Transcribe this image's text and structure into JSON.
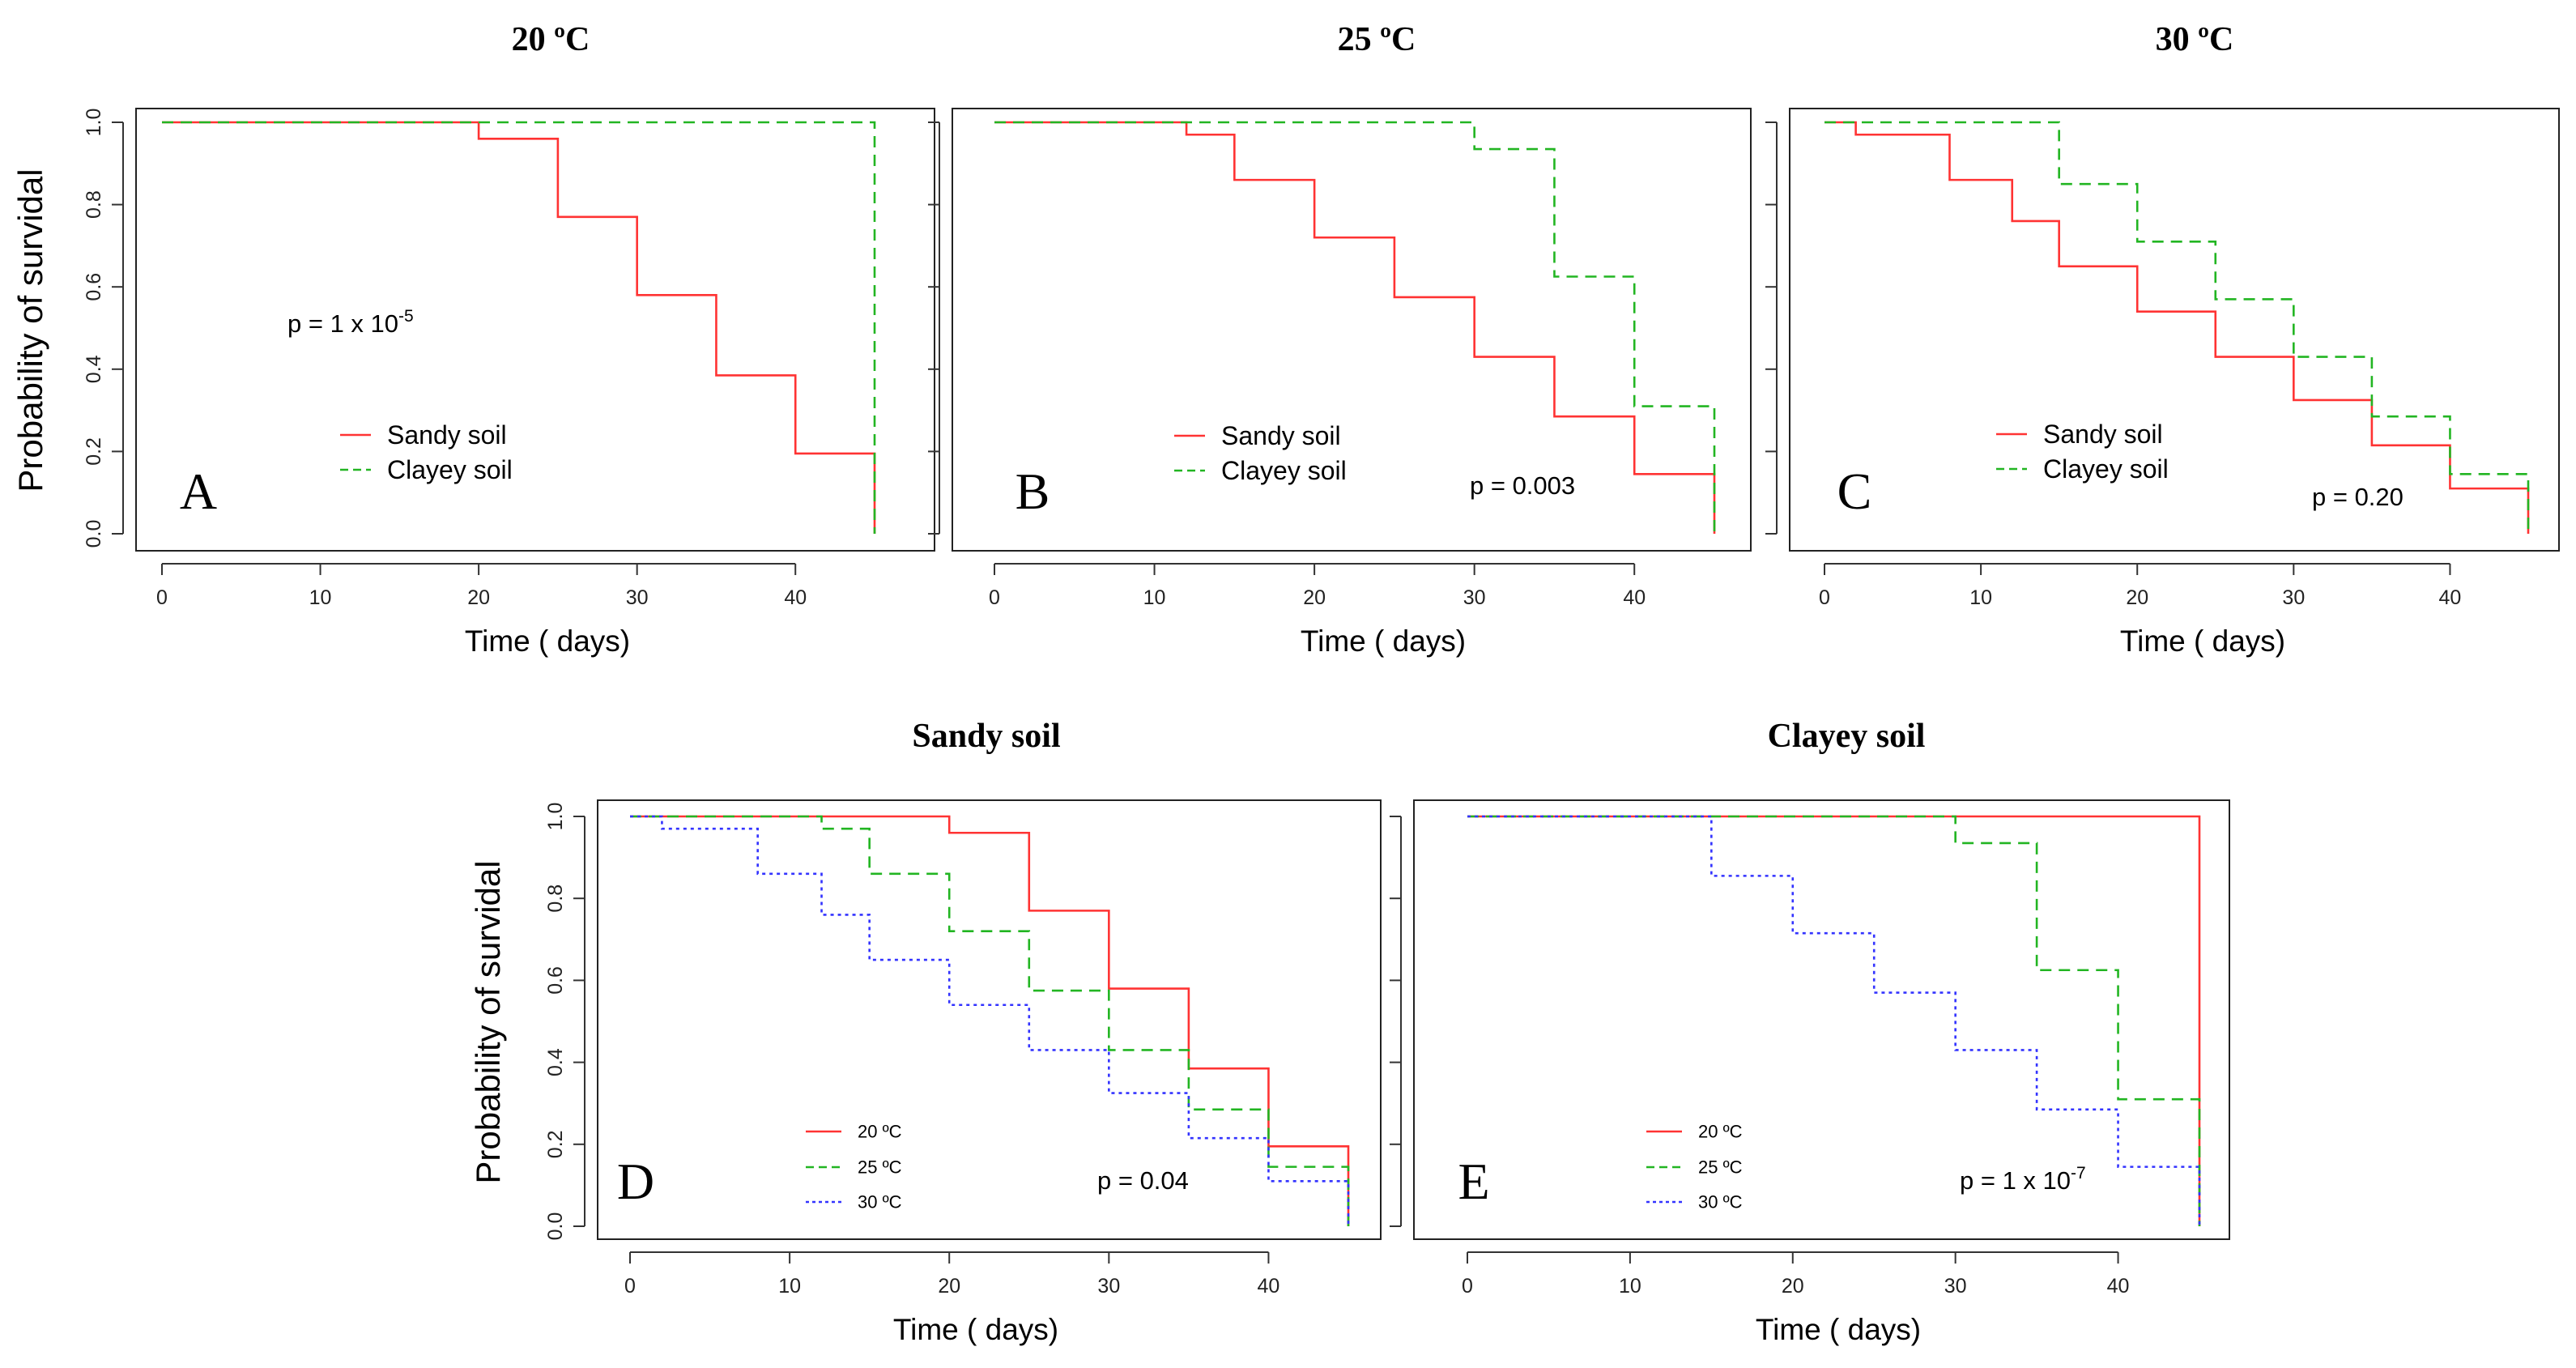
{
  "chart_data": [
    {
      "type": "line",
      "step": true,
      "panel_letter": "A",
      "title": "20 ºC",
      "xlabel": "Time ( days)",
      "ylabel": "Probability of survidal",
      "xlim": [
        0,
        45
      ],
      "ylim": [
        0,
        1
      ],
      "xticks": [
        "0",
        "10",
        "20",
        "30",
        "40"
      ],
      "yticks": [
        "0.0",
        "0.2",
        "0.4",
        "0.6",
        "0.8",
        "1.0"
      ],
      "p_value": {
        "prefix": "p = 1 x 10",
        "exponent": "-5"
      },
      "series": [
        {
          "name": "Sandy soil",
          "color": "#ff3333",
          "dash": "solid",
          "x": [
            0,
            20,
            25,
            30,
            35,
            40,
            45
          ],
          "y": [
            1.0,
            0.96,
            0.77,
            0.58,
            0.385,
            0.195,
            0.0
          ]
        },
        {
          "name": "Clayey soil",
          "color": "#22b522",
          "dash": "dashed",
          "x": [
            0,
            45
          ],
          "y": [
            1.0,
            0.0
          ]
        }
      ]
    },
    {
      "type": "line",
      "step": true,
      "panel_letter": "B",
      "title": "25 ºC",
      "xlabel": "Time ( days)",
      "ylabel": "",
      "xlim": [
        0,
        45
      ],
      "ylim": [
        0,
        1
      ],
      "xticks": [
        "0",
        "10",
        "20",
        "30",
        "40"
      ],
      "yticks": [],
      "p_value": {
        "prefix": "p = 0.003",
        "exponent": ""
      },
      "series": [
        {
          "name": "Sandy soil",
          "color": "#ff3333",
          "dash": "solid",
          "x": [
            0,
            12,
            15,
            20,
            25,
            30,
            35,
            40,
            45
          ],
          "y": [
            1.0,
            0.97,
            0.86,
            0.72,
            0.575,
            0.43,
            0.285,
            0.145,
            0.0
          ]
        },
        {
          "name": "Clayey soil",
          "color": "#22b522",
          "dash": "dashed",
          "x": [
            0,
            30,
            35,
            40,
            45
          ],
          "y": [
            1.0,
            0.935,
            0.625,
            0.31,
            0.0
          ]
        }
      ]
    },
    {
      "type": "line",
      "step": true,
      "panel_letter": "C",
      "title": "30 ºC",
      "xlabel": "Time ( days)",
      "ylabel": "",
      "xlim": [
        0,
        45
      ],
      "ylim": [
        0,
        1
      ],
      "xticks": [
        "0",
        "10",
        "20",
        "30",
        "40"
      ],
      "yticks": [],
      "p_value": {
        "prefix": "p = 0.20",
        "exponent": ""
      },
      "series": [
        {
          "name": "Sandy soil",
          "color": "#ff3333",
          "dash": "solid",
          "x": [
            0,
            2,
            8,
            12,
            15,
            20,
            25,
            30,
            35,
            40,
            45
          ],
          "y": [
            1.0,
            0.97,
            0.86,
            0.76,
            0.65,
            0.54,
            0.43,
            0.325,
            0.215,
            0.11,
            0.0
          ]
        },
        {
          "name": "Clayey soil",
          "color": "#22b522",
          "dash": "dashed",
          "x": [
            0,
            15,
            20,
            25,
            30,
            35,
            40,
            45
          ],
          "y": [
            1.0,
            0.85,
            0.71,
            0.57,
            0.43,
            0.285,
            0.145,
            0.0
          ]
        }
      ]
    },
    {
      "type": "line",
      "step": true,
      "panel_letter": "D",
      "title": "Sandy soil",
      "xlabel": "Time ( days)",
      "ylabel": "Probability of survidal",
      "xlim": [
        0,
        45
      ],
      "ylim": [
        0,
        1
      ],
      "xticks": [
        "0",
        "10",
        "20",
        "30",
        "40"
      ],
      "yticks": [
        "0.0",
        "0.2",
        "0.4",
        "0.6",
        "0.8",
        "1.0"
      ],
      "p_value": {
        "prefix": "p = 0.04",
        "exponent": ""
      },
      "series": [
        {
          "name": "20 ºC",
          "color": "#ff3333",
          "dash": "solid",
          "x": [
            0,
            20,
            25,
            30,
            35,
            40,
            45
          ],
          "y": [
            1.0,
            0.96,
            0.77,
            0.58,
            0.385,
            0.195,
            0.0
          ]
        },
        {
          "name": "25 ºC",
          "color": "#22b522",
          "dash": "dashed",
          "x": [
            0,
            12,
            15,
            20,
            25,
            30,
            35,
            40,
            45
          ],
          "y": [
            1.0,
            0.97,
            0.86,
            0.72,
            0.575,
            0.43,
            0.285,
            0.145,
            0.0
          ]
        },
        {
          "name": "30 ºC",
          "color": "#3333ff",
          "dash": "dotted",
          "x": [
            0,
            2,
            8,
            12,
            15,
            20,
            25,
            30,
            35,
            40,
            45
          ],
          "y": [
            1.0,
            0.97,
            0.86,
            0.76,
            0.65,
            0.54,
            0.43,
            0.325,
            0.215,
            0.11,
            0.0
          ]
        }
      ]
    },
    {
      "type": "line",
      "step": true,
      "panel_letter": "E",
      "title": "Clayey soil",
      "xlabel": "Time ( days)",
      "ylabel": "",
      "xlim": [
        0,
        45
      ],
      "ylim": [
        0,
        1
      ],
      "xticks": [
        "0",
        "10",
        "20",
        "30",
        "40"
      ],
      "yticks": [],
      "p_value": {
        "prefix": "p = 1 x 10",
        "exponent": "-7"
      },
      "series": [
        {
          "name": "20 ºC",
          "color": "#ff3333",
          "dash": "solid",
          "x": [
            0,
            45
          ],
          "y": [
            1.0,
            0.0
          ]
        },
        {
          "name": "25 ºC",
          "color": "#22b522",
          "dash": "dashed",
          "x": [
            0,
            30,
            35,
            40,
            45
          ],
          "y": [
            1.0,
            0.935,
            0.625,
            0.31,
            0.0
          ]
        },
        {
          "name": "30 ºC",
          "color": "#3333ff",
          "dash": "dotted",
          "x": [
            0,
            15,
            20,
            25,
            30,
            35,
            40,
            45
          ],
          "y": [
            1.0,
            0.855,
            0.715,
            0.57,
            0.43,
            0.285,
            0.145,
            0.0
          ]
        }
      ]
    }
  ]
}
